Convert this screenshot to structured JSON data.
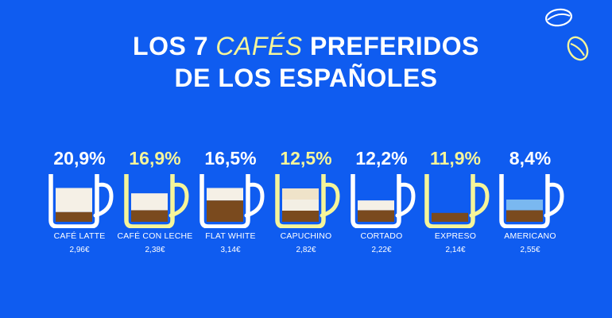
{
  "title": {
    "line1_before": "LOS 7 ",
    "line1_accent": "CAFÉS",
    "line1_after": " PREFERIDOS",
    "line2": "DE LOS ESPAÑOLES"
  },
  "colors": {
    "background": "#0f5cf0",
    "white": "#ffffff",
    "yellow": "#f5f59a",
    "coffee": "#7a4a1e",
    "milk": "#f5f0e6",
    "water": "#7ab8f0"
  },
  "icons": [
    "coffee-bean-outline-icon",
    "coffee-bean-yellow-icon"
  ],
  "coffees": [
    {
      "percent": "20,9%",
      "name": "CAFÉ LATTE",
      "price": "2,96€",
      "accent": "white",
      "layers": [
        {
          "type": "coffee",
          "fraction": 0.22
        },
        {
          "type": "milk",
          "fraction": 0.54
        }
      ]
    },
    {
      "percent": "16,9%",
      "name": "CAFÉ CON LECHE",
      "price": "2,38€",
      "accent": "yellow",
      "layers": [
        {
          "type": "coffee",
          "fraction": 0.26
        },
        {
          "type": "milk",
          "fraction": 0.38
        }
      ]
    },
    {
      "percent": "16,5%",
      "name": "FLAT WHITE",
      "price": "3,14€",
      "accent": "white",
      "layers": [
        {
          "type": "coffee",
          "fraction": 0.48
        },
        {
          "type": "milk",
          "fraction": 0.28
        }
      ]
    },
    {
      "percent": "12,5%",
      "name": "CAPUCHINO",
      "price": "2,82€",
      "accent": "yellow",
      "layers": [
        {
          "type": "coffee",
          "fraction": 0.25
        },
        {
          "type": "milk",
          "fraction": 0.25
        },
        {
          "type": "milk",
          "fraction": 0.25
        }
      ]
    },
    {
      "percent": "12,2%",
      "name": "CORTADO",
      "price": "2,22€",
      "accent": "white",
      "layers": [
        {
          "type": "coffee",
          "fraction": 0.26
        },
        {
          "type": "milk",
          "fraction": 0.22
        }
      ]
    },
    {
      "percent": "11,9%",
      "name": "EXPRESO",
      "price": "2,14€",
      "accent": "yellow",
      "layers": [
        {
          "type": "coffee",
          "fraction": 0.2
        }
      ]
    },
    {
      "percent": "8,4%",
      "name": "AMERICANO",
      "price": "2,55€",
      "accent": "white",
      "layers": [
        {
          "type": "coffee",
          "fraction": 0.26
        },
        {
          "type": "water",
          "fraction": 0.24
        }
      ]
    }
  ]
}
